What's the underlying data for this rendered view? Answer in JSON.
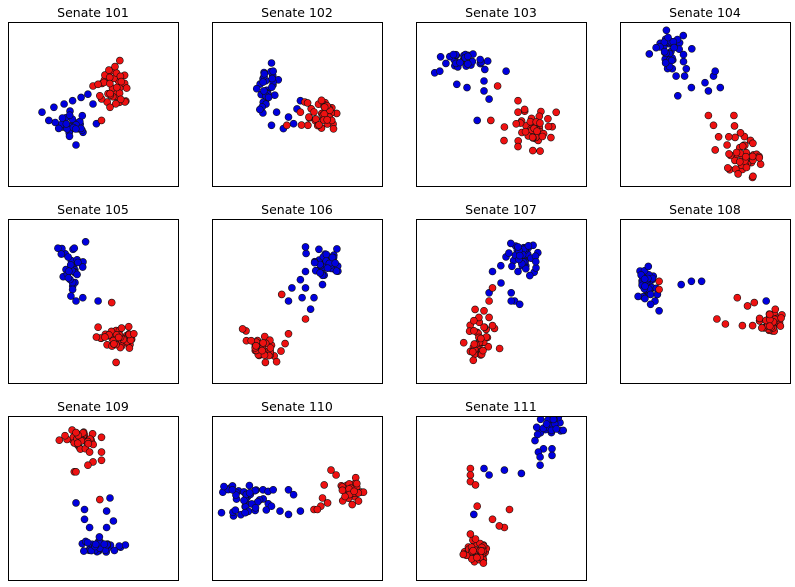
{
  "colors": {
    "blue": "#0000dd",
    "red": "#ee1111",
    "edge": "#111111",
    "frame": "#000000"
  },
  "chart_data": [
    {
      "type": "scatter",
      "title": "Senate 101",
      "xticks": [],
      "yticks": [],
      "legend": "none",
      "series": [
        {
          "color": "blue",
          "cluster": {
            "cx": 0.38,
            "cy": 0.63,
            "rx": 0.09,
            "ry": 0.06,
            "n": 30
          },
          "points": [
            [
              0.2,
              0.55
            ],
            [
              0.27,
              0.52
            ],
            [
              0.33,
              0.5
            ],
            [
              0.38,
              0.48
            ],
            [
              0.43,
              0.46
            ],
            [
              0.47,
              0.44
            ],
            [
              0.5,
              0.5
            ],
            [
              0.52,
              0.62
            ],
            [
              0.4,
              0.75
            ],
            [
              0.24,
              0.6
            ]
          ]
        },
        {
          "color": "red",
          "cluster": {
            "cx": 0.63,
            "cy": 0.38,
            "rx": 0.07,
            "ry": 0.13,
            "n": 40
          },
          "points": [
            [
              0.5,
              0.39
            ],
            [
              0.54,
              0.45
            ],
            [
              0.6,
              0.52
            ],
            [
              0.53,
              0.38
            ],
            [
              0.55,
              0.6
            ]
          ]
        }
      ]
    },
    {
      "type": "scatter",
      "title": "Senate 102",
      "xticks": [],
      "yticks": [],
      "legend": "none",
      "series": [
        {
          "color": "blue",
          "cluster": {
            "cx": 0.32,
            "cy": 0.39,
            "rx": 0.06,
            "ry": 0.12,
            "n": 30
          },
          "points": [
            [
              0.35,
              0.25
            ],
            [
              0.36,
              0.3
            ],
            [
              0.38,
              0.55
            ],
            [
              0.45,
              0.58
            ],
            [
              0.5,
              0.53
            ],
            [
              0.52,
              0.48
            ],
            [
              0.48,
              0.62
            ],
            [
              0.42,
              0.65
            ],
            [
              0.35,
              0.63
            ]
          ]
        },
        {
          "color": "red",
          "cluster": {
            "cx": 0.64,
            "cy": 0.57,
            "rx": 0.09,
            "ry": 0.1,
            "n": 40
          },
          "points": [
            [
              0.44,
              0.63
            ],
            [
              0.52,
              0.55
            ],
            [
              0.57,
              0.58
            ]
          ]
        }
      ]
    },
    {
      "type": "scatter",
      "title": "Senate 103",
      "xticks": [],
      "yticks": [],
      "legend": "none",
      "series": [
        {
          "color": "blue",
          "cluster": {
            "cx": 0.3,
            "cy": 0.24,
            "rx": 0.13,
            "ry": 0.06,
            "n": 35
          },
          "points": [
            [
              0.11,
              0.31
            ],
            [
              0.14,
              0.3
            ],
            [
              0.24,
              0.38
            ],
            [
              0.3,
              0.4
            ],
            [
              0.4,
              0.42
            ],
            [
              0.43,
              0.47
            ],
            [
              0.53,
              0.3
            ],
            [
              0.4,
              0.36
            ],
            [
              0.36,
              0.6
            ]
          ]
        },
        {
          "color": "red",
          "cluster": {
            "cx": 0.69,
            "cy": 0.66,
            "rx": 0.09,
            "ry": 0.1,
            "n": 45
          },
          "points": [
            [
              0.48,
              0.39
            ],
            [
              0.6,
              0.48
            ],
            [
              0.6,
              0.55
            ],
            [
              0.44,
              0.6
            ],
            [
              0.52,
              0.64
            ],
            [
              0.6,
              0.76
            ]
          ]
        }
      ]
    },
    {
      "type": "scatter",
      "title": "Senate 104",
      "xticks": [],
      "yticks": [],
      "legend": "none",
      "series": [
        {
          "color": "blue",
          "cluster": {
            "cx": 0.3,
            "cy": 0.18,
            "rx": 0.08,
            "ry": 0.11,
            "n": 40
          },
          "points": [
            [
              0.33,
              0.33
            ],
            [
              0.38,
              0.33
            ],
            [
              0.42,
              0.4
            ],
            [
              0.5,
              0.37
            ],
            [
              0.55,
              0.33
            ],
            [
              0.59,
              0.4
            ],
            [
              0.52,
              0.42
            ],
            [
              0.34,
              0.45
            ],
            [
              0.56,
              0.3
            ]
          ]
        },
        {
          "color": "red",
          "cluster": {
            "cx": 0.73,
            "cy": 0.82,
            "rx": 0.1,
            "ry": 0.1,
            "n": 45
          },
          "points": [
            [
              0.52,
              0.57
            ],
            [
              0.55,
              0.63
            ],
            [
              0.64,
              0.7
            ],
            [
              0.67,
              0.57
            ],
            [
              0.58,
              0.7
            ],
            [
              0.63,
              0.75
            ],
            [
              0.56,
              0.78
            ]
          ]
        }
      ]
    },
    {
      "type": "scatter",
      "title": "Senate 105",
      "xticks": [],
      "yticks": [],
      "legend": "none",
      "series": [
        {
          "color": "blue",
          "cluster": {
            "cx": 0.37,
            "cy": 0.28,
            "rx": 0.07,
            "ry": 0.1,
            "n": 30
          },
          "points": [
            [
              0.38,
              0.43
            ],
            [
              0.37,
              0.47
            ],
            [
              0.4,
              0.5
            ],
            [
              0.53,
              0.5
            ],
            [
              0.44,
              0.48
            ]
          ]
        },
        {
          "color": "red",
          "cluster": {
            "cx": 0.66,
            "cy": 0.73,
            "rx": 0.1,
            "ry": 0.08,
            "n": 45
          },
          "points": [
            [
              0.61,
              0.51
            ],
            [
              0.53,
              0.66
            ],
            [
              0.52,
              0.72
            ],
            [
              0.57,
              0.72
            ],
            [
              0.74,
              0.7
            ]
          ]
        }
      ]
    },
    {
      "type": "scatter",
      "title": "Senate 106",
      "xticks": [],
      "yticks": [],
      "legend": "none",
      "series": [
        {
          "color": "blue",
          "cluster": {
            "cx": 0.67,
            "cy": 0.25,
            "rx": 0.08,
            "ry": 0.08,
            "n": 40
          },
          "points": [
            [
              0.55,
              0.17
            ],
            [
              0.55,
              0.32
            ],
            [
              0.52,
              0.37
            ],
            [
              0.47,
              0.42
            ],
            [
              0.55,
              0.42
            ],
            [
              0.65,
              0.4
            ],
            [
              0.6,
              0.48
            ],
            [
              0.53,
              0.48
            ],
            [
              0.58,
              0.55
            ],
            [
              0.45,
              0.5
            ]
          ]
        },
        {
          "color": "red",
          "cluster": {
            "cx": 0.3,
            "cy": 0.78,
            "rx": 0.08,
            "ry": 0.07,
            "n": 40
          },
          "points": [
            [
              0.41,
              0.46
            ],
            [
              0.55,
              0.61
            ],
            [
              0.45,
              0.7
            ],
            [
              0.18,
              0.67
            ],
            [
              0.43,
              0.76
            ],
            [
              0.38,
              0.87
            ]
          ]
        }
      ]
    },
    {
      "type": "scatter",
      "title": "Senate 107",
      "xticks": [],
      "yticks": [],
      "legend": "none",
      "series": [
        {
          "color": "blue",
          "cluster": {
            "cx": 0.64,
            "cy": 0.24,
            "rx": 0.09,
            "ry": 0.08,
            "n": 40
          },
          "points": [
            [
              0.6,
              0.17
            ],
            [
              0.6,
              0.32
            ],
            [
              0.45,
              0.32
            ],
            [
              0.5,
              0.39
            ],
            [
              0.43,
              0.45
            ],
            [
              0.56,
              0.45
            ],
            [
              0.58,
              0.5
            ],
            [
              0.61,
              0.52
            ],
            [
              0.56,
              0.5
            ]
          ]
        },
        {
          "color": "red",
          "cluster": {
            "cx": 0.37,
            "cy": 0.75,
            "rx": 0.07,
            "ry": 0.09,
            "n": 40
          },
          "points": [
            [
              0.43,
              0.5
            ],
            [
              0.4,
              0.56
            ],
            [
              0.37,
              0.6
            ],
            [
              0.34,
              0.62
            ],
            [
              0.4,
              0.66
            ],
            [
              0.45,
              0.65
            ],
            [
              0.43,
              0.6
            ],
            [
              0.45,
              0.42
            ]
          ]
        }
      ]
    },
    {
      "type": "scatter",
      "title": "Senate 108",
      "xticks": [],
      "yticks": [],
      "legend": "none",
      "series": [
        {
          "color": "blue",
          "cluster": {
            "cx": 0.15,
            "cy": 0.4,
            "rx": 0.05,
            "ry": 0.09,
            "n": 35
          },
          "points": [
            [
              0.18,
              0.46
            ],
            [
              0.22,
              0.46
            ],
            [
              0.18,
              0.52
            ],
            [
              0.23,
              0.56
            ],
            [
              0.36,
              0.4
            ],
            [
              0.42,
              0.38
            ],
            [
              0.48,
              0.38
            ],
            [
              0.86,
              0.5
            ],
            [
              0.88,
              0.6
            ]
          ]
        },
        {
          "color": "red",
          "cluster": {
            "cx": 0.89,
            "cy": 0.62,
            "rx": 0.06,
            "ry": 0.07,
            "n": 40
          },
          "points": [
            [
              0.23,
              0.38
            ],
            [
              0.23,
              0.43
            ],
            [
              0.69,
              0.48
            ],
            [
              0.79,
              0.51
            ],
            [
              0.75,
              0.53
            ],
            [
              0.57,
              0.61
            ],
            [
              0.62,
              0.64
            ],
            [
              0.72,
              0.65
            ],
            [
              0.78,
              0.65
            ]
          ]
        }
      ]
    },
    {
      "type": "scatter",
      "title": "Senate 109",
      "xticks": [],
      "yticks": [],
      "legend": "none",
      "series": [
        {
          "color": "blue",
          "cluster": {
            "cx": 0.55,
            "cy": 0.8,
            "rx": 0.12,
            "ry": 0.04,
            "n": 45
          },
          "points": [
            [
              0.4,
              0.53
            ],
            [
              0.45,
              0.57
            ],
            [
              0.6,
              0.5
            ],
            [
              0.58,
              0.58
            ],
            [
              0.45,
              0.63
            ],
            [
              0.48,
              0.68
            ],
            [
              0.58,
              0.68
            ],
            [
              0.62,
              0.64
            ]
          ]
        },
        {
          "color": "red",
          "cluster": {
            "cx": 0.43,
            "cy": 0.14,
            "rx": 0.08,
            "ry": 0.06,
            "n": 40
          },
          "points": [
            [
              0.55,
              0.13
            ],
            [
              0.55,
              0.22
            ],
            [
              0.55,
              0.27
            ],
            [
              0.5,
              0.28
            ],
            [
              0.47,
              0.3
            ],
            [
              0.39,
              0.34
            ],
            [
              0.4,
              0.34
            ],
            [
              0.48,
              0.22
            ],
            [
              0.54,
              0.51
            ]
          ]
        }
      ]
    },
    {
      "type": "scatter",
      "title": "Senate 110",
      "xticks": [],
      "yticks": [],
      "legend": "none",
      "series": [
        {
          "color": "blue",
          "cluster": {
            "cx": 0.2,
            "cy": 0.53,
            "rx": 0.1,
            "ry": 0.1,
            "n": 40
          },
          "points": [
            [
              0.07,
              0.43
            ],
            [
              0.12,
              0.45
            ],
            [
              0.3,
              0.45
            ],
            [
              0.33,
              0.46
            ],
            [
              0.36,
              0.45
            ],
            [
              0.45,
              0.45
            ],
            [
              0.35,
              0.55
            ],
            [
              0.4,
              0.58
            ],
            [
              0.45,
              0.6
            ],
            [
              0.52,
              0.58
            ],
            [
              0.48,
              0.48
            ]
          ]
        },
        {
          "color": "red",
          "cluster": {
            "cx": 0.8,
            "cy": 0.45,
            "rx": 0.07,
            "ry": 0.07,
            "n": 35
          },
          "points": [
            [
              0.7,
              0.33
            ],
            [
              0.73,
              0.36
            ],
            [
              0.66,
              0.42
            ],
            [
              0.65,
              0.5
            ],
            [
              0.64,
              0.55
            ],
            [
              0.6,
              0.57
            ],
            [
              0.62,
              0.57
            ],
            [
              0.68,
              0.53
            ]
          ]
        }
      ]
    },
    {
      "type": "scatter",
      "title": "Senate 111",
      "xticks": [],
      "yticks": [],
      "legend": "none",
      "series": [
        {
          "color": "blue",
          "cluster": {
            "cx": 0.78,
            "cy": 0.06,
            "rx": 0.07,
            "ry": 0.05,
            "n": 25
          },
          "points": [
            [
              0.7,
              0.15
            ],
            [
              0.75,
              0.2
            ],
            [
              0.8,
              0.2
            ],
            [
              0.72,
              0.22
            ],
            [
              0.73,
              0.25
            ],
            [
              0.73,
              0.3
            ],
            [
              0.8,
              0.24
            ],
            [
              0.62,
              0.35
            ],
            [
              0.52,
              0.33
            ],
            [
              0.43,
              0.36
            ],
            [
              0.4,
              0.32
            ],
            [
              0.34,
              0.6
            ]
          ]
        },
        {
          "color": "red",
          "cluster": {
            "cx": 0.35,
            "cy": 0.83,
            "rx": 0.06,
            "ry": 0.06,
            "n": 40
          },
          "points": [
            [
              0.32,
              0.32
            ],
            [
              0.32,
              0.36
            ],
            [
              0.32,
              0.4
            ],
            [
              0.35,
              0.42
            ],
            [
              0.36,
              0.55
            ],
            [
              0.45,
              0.63
            ],
            [
              0.55,
              0.57
            ],
            [
              0.52,
              0.68
            ],
            [
              0.49,
              0.67
            ],
            [
              0.32,
              0.72
            ],
            [
              0.35,
              0.75
            ]
          ]
        }
      ]
    }
  ]
}
